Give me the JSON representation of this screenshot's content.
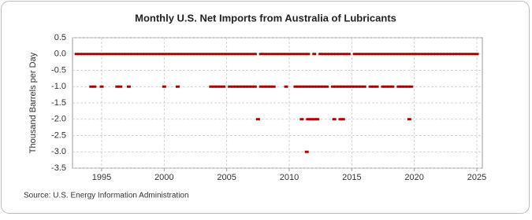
{
  "chart_data": {
    "type": "scatter",
    "title": "Monthly U.S. Net Imports from Australia of Lubricants",
    "y_label": "Thousand Barrels per Day",
    "source": "Source: U.S. Energy Information Administration",
    "xlim": [
      1992.67,
      2025.44
    ],
    "xticks": [
      1995,
      2000,
      2005,
      2010,
      2015,
      2020,
      2025
    ],
    "ylim": [
      -3.5,
      0.5
    ],
    "yticks": [
      0.5,
      {
        "value": 0,
        "label": "0.0"
      },
      -0.5,
      {
        "value": -1,
        "label": "-1.0"
      },
      -1.5,
      {
        "value": -2,
        "label": "-2.0"
      },
      -2.5,
      {
        "value": -3,
        "label": "-3.0"
      },
      -3.5
    ],
    "grid": true,
    "series": [
      {
        "color": "#b20000",
        "x": [
          1993,
          1993.25,
          1993.5,
          1993.75,
          1994,
          1994.25,
          1994.5,
          1994.75,
          1995,
          1995.25,
          1995.5,
          1995.75,
          1996,
          1996.25,
          1996.5,
          1996.75,
          1997,
          1997.25,
          1997.5,
          1997.75,
          1998,
          1998.25,
          1998.5,
          1998.75,
          1999,
          1999.25,
          1999.5,
          1999.75,
          2000,
          2000.25,
          2000.5,
          2000.75,
          2001,
          2001.25,
          2001.5,
          2001.75,
          2002,
          2002.25,
          2002.5,
          2002.75,
          2003,
          2003.25,
          2003.5,
          2003.75,
          2004,
          2004.25,
          2004.5,
          2004.75,
          2005,
          2005.25,
          2005.5,
          2005.75,
          2006,
          2006.25,
          2006.5,
          2006.75,
          2007,
          2007.25,
          2007.75,
          2008,
          2008.25,
          2008.5,
          2008.75,
          2009,
          2009.25,
          2009.5,
          2009.75,
          2010,
          2010.25,
          2010.5,
          2010.75,
          2011,
          2011.25,
          2011.5,
          2012,
          2012.5,
          2012.75,
          2013,
          2013.25,
          2013.5,
          2013.75,
          2014,
          2014.25,
          2014.5,
          2014.75,
          2015.25,
          2015.5,
          2015.75,
          2016,
          2016.25,
          2016.5,
          2016.75,
          2017,
          2017.25,
          2017.5,
          2017.75,
          2018,
          2018.25,
          2018.5,
          2018.75,
          2019,
          2019.25,
          2019.5,
          2019.75,
          2020,
          2020.25,
          2020.5,
          2020.75,
          2021,
          2021.25,
          2021.5,
          2021.75,
          2022,
          2022.25,
          2022.5,
          2022.75,
          2023,
          2023.25,
          2023.5,
          2023.75,
          2024,
          2024.25,
          2024.5,
          2024.75,
          2025
        ],
        "values": [
          0,
          0,
          0,
          0,
          0,
          0,
          0,
          0,
          0,
          0,
          0,
          0,
          0,
          0,
          0,
          0,
          0,
          0,
          0,
          0,
          0,
          0,
          0,
          0,
          0,
          0,
          0,
          0,
          0,
          0,
          0,
          0,
          0,
          0,
          0,
          0,
          0,
          0,
          0,
          0,
          0,
          0,
          0,
          0,
          0,
          0,
          0,
          0,
          0,
          0,
          0,
          0,
          0,
          0,
          0,
          0,
          0,
          0,
          0,
          0,
          0,
          0,
          0,
          0,
          0,
          0,
          0,
          0,
          0,
          0,
          0,
          0,
          0,
          0,
          0,
          0,
          0,
          0,
          0,
          0,
          0,
          0,
          0,
          0,
          0,
          0,
          0,
          0,
          0,
          0,
          0,
          0,
          0,
          0,
          0,
          0,
          0,
          0,
          0,
          0,
          0,
          0,
          0,
          0,
          0,
          0,
          0,
          0,
          0,
          0,
          0,
          0,
          0,
          0,
          0,
          0,
          0,
          0,
          0,
          0,
          0,
          0,
          0,
          0,
          0
        ]
      },
      {
        "color": "#b20000",
        "x": [
          1994.17,
          1994.42,
          1995,
          1996.25,
          1996.5,
          1997.17,
          2000,
          2001.08,
          2003.75,
          2004,
          2004.25,
          2004.5,
          2004.75,
          2005.25,
          2005.5,
          2005.75,
          2006,
          2006.25,
          2006.5,
          2006.75,
          2007,
          2007.25,
          2007.75,
          2008,
          2008.25,
          2008.5,
          2008.75,
          2009.75,
          2010.5,
          2010.75,
          2011,
          2011.25,
          2011.5,
          2011.75,
          2012,
          2012.25,
          2012.5,
          2012.75,
          2013,
          2013.5,
          2013.75,
          2014,
          2014.25,
          2014.5,
          2014.75,
          2015,
          2015.25,
          2015.5,
          2015.75,
          2016,
          2016.5,
          2016.75,
          2017,
          2017.5,
          2017.75,
          2018,
          2018.25,
          2018.75,
          2019,
          2019.25,
          2019.5,
          2019.75
        ],
        "values": [
          -1,
          -1,
          -1,
          -1,
          -1,
          -1,
          -1,
          -1,
          -1,
          -1,
          -1,
          -1,
          -1,
          -1,
          -1,
          -1,
          -1,
          -1,
          -1,
          -1,
          -1,
          -1,
          -1,
          -1,
          -1,
          -1,
          -1,
          -1,
          -1,
          -1,
          -1,
          -1,
          -1,
          -1,
          -1,
          -1,
          -1,
          -1,
          -1,
          -1,
          -1,
          -1,
          -1,
          -1,
          -1,
          -1,
          -1,
          -1,
          -1,
          -1,
          -1,
          -1,
          -1,
          -1,
          -1,
          -1,
          -1,
          -1,
          -1,
          -1,
          -1,
          -1
        ]
      },
      {
        "color": "#b20000",
        "x": [
          2007.5,
          2011,
          2011.5,
          2011.75,
          2012,
          2012.25,
          2013.6,
          2014.1,
          2014.3,
          2019.6,
          2011.4
        ],
        "values": [
          -2,
          -2,
          -2,
          -2,
          -2,
          -2,
          -2,
          -2,
          -2,
          -2,
          -3
        ]
      }
    ]
  }
}
